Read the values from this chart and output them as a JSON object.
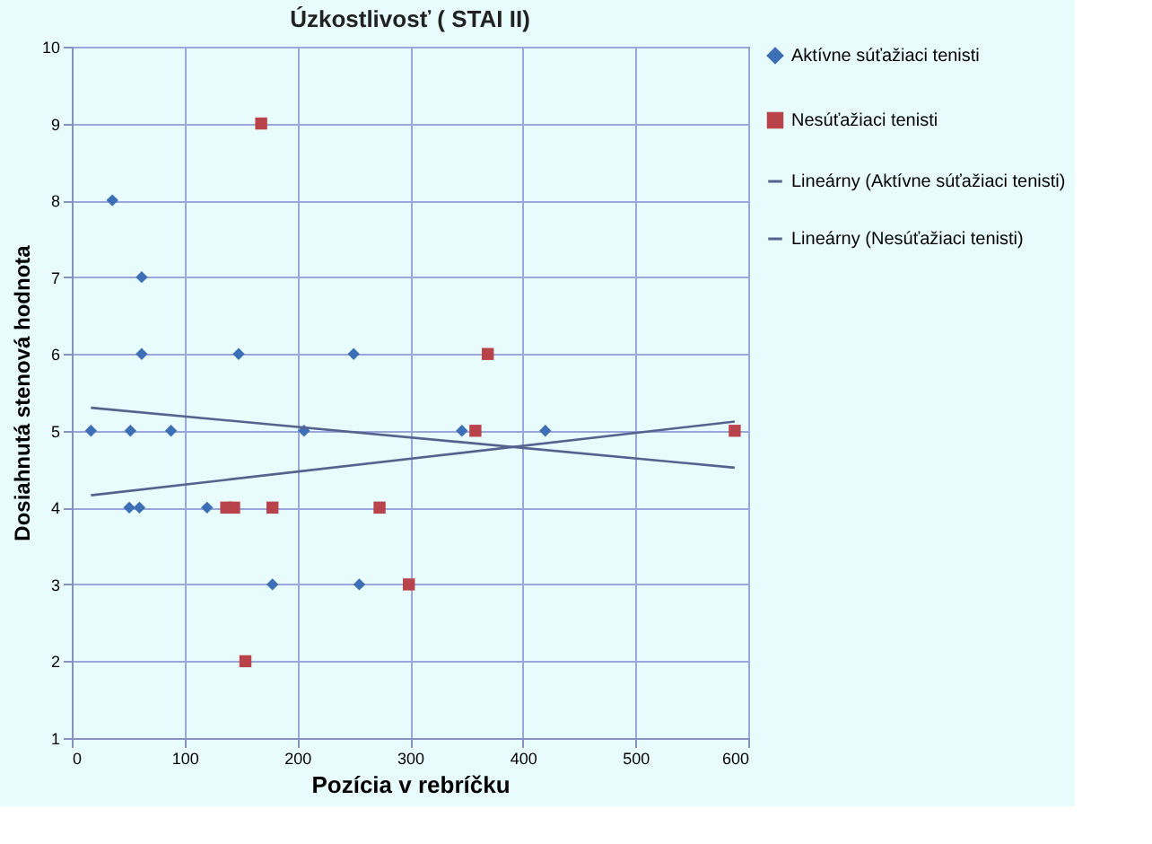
{
  "chart_data": {
    "type": "scatter",
    "title": "Úzkostlivosť ( STAI II)",
    "xlabel": "Pozícia v rebríčku",
    "ylabel": "Dosiahnutá stenová hodnota",
    "xlim": [
      0,
      600
    ],
    "xticks": [
      0,
      100,
      200,
      300,
      400,
      500,
      600
    ],
    "ylim": [
      1,
      10
    ],
    "yticks": [
      1,
      2,
      3,
      4,
      5,
      6,
      7,
      8,
      9,
      10
    ],
    "grid": true,
    "legend": "right",
    "series": [
      {
        "name": "Aktívne súťažiaci tenisti",
        "color": "#3d6fb6",
        "marker": "diamond",
        "x": [
          17,
          52,
          88,
          206,
          346,
          420,
          51,
          60,
          120,
          178,
          255,
          36,
          62,
          62,
          148,
          250
        ],
        "values": [
          5,
          5,
          5,
          5,
          5,
          5,
          4,
          4,
          4,
          3,
          3,
          8,
          7,
          6,
          6,
          6
        ]
      },
      {
        "name": "Nesúťažiaci tenisti",
        "color": "#b8434a",
        "marker": "square",
        "x": [
          168,
          369,
          358,
          588,
          137,
          144,
          178,
          273,
          299,
          154
        ],
        "values": [
          9,
          6,
          5,
          5,
          4,
          4,
          4,
          4,
          3,
          2
        ]
      },
      {
        "name": "Lineárny (Aktívne súťažiaci tenisti)",
        "type": "line",
        "color": "#56628e",
        "x": [
          17,
          588
        ],
        "values": [
          5.3,
          4.52
        ]
      },
      {
        "name": "Lineárny (Nesúťažiaci tenisti)",
        "type": "line",
        "color": "#56628e",
        "x": [
          17,
          588
        ],
        "values": [
          4.16,
          5.12
        ]
      }
    ]
  }
}
